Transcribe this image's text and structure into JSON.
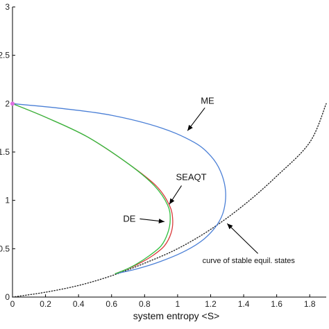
{
  "chart_data": {
    "type": "line",
    "title": "",
    "xlabel": "system entropy <S>",
    "ylabel": "",
    "xlim": [
      0,
      1.9
    ],
    "ylim": [
      0,
      3
    ],
    "x_ticks": [
      0,
      0.2,
      0.4,
      0.6,
      0.8,
      1,
      1.2,
      1.4,
      1.6,
      1.8
    ],
    "x_tick_labels": [
      "0",
      "0.2",
      "0.4",
      "0.6",
      "0.8",
      "1",
      "1.2",
      "1.4",
      "1.6",
      "1.8"
    ],
    "y_ticks": [
      0,
      0.5,
      1,
      1.5,
      2,
      2.5,
      3
    ],
    "y_tick_labels": [
      "0",
      "0.5",
      "1",
      "1.5",
      "2",
      "2.5",
      "3"
    ],
    "grid": false,
    "colors": {
      "me": "#4a7fd6",
      "seaqt": "#d93a3a",
      "de": "#2fbf3f",
      "equilibrium": "#222222",
      "start_marker": "#e070e0"
    },
    "series": [
      {
        "id": "me",
        "style": "solid",
        "x": [
          0.0,
          0.3,
          0.6,
          0.9,
          1.1,
          1.2,
          1.26,
          1.29,
          1.28,
          1.24,
          1.16,
          1.05,
          0.9,
          0.75,
          0.62
        ],
        "y": [
          2.0,
          1.95,
          1.88,
          1.75,
          1.6,
          1.46,
          1.3,
          1.1,
          0.9,
          0.75,
          0.6,
          0.48,
          0.37,
          0.29,
          0.24
        ]
      },
      {
        "id": "seaqt",
        "style": "solid",
        "x": [
          0.0,
          0.2,
          0.45,
          0.7,
          0.87,
          0.95,
          0.97,
          0.96,
          0.92,
          0.85,
          0.76,
          0.68,
          0.62
        ],
        "y": [
          2.0,
          1.86,
          1.66,
          1.38,
          1.15,
          0.95,
          0.8,
          0.66,
          0.53,
          0.43,
          0.34,
          0.28,
          0.24
        ]
      },
      {
        "id": "de",
        "style": "solid",
        "x": [
          0.0,
          0.2,
          0.45,
          0.7,
          0.86,
          0.94,
          0.955,
          0.94,
          0.9,
          0.83,
          0.75,
          0.68,
          0.62
        ],
        "y": [
          2.0,
          1.86,
          1.66,
          1.38,
          1.15,
          0.95,
          0.8,
          0.66,
          0.53,
          0.43,
          0.34,
          0.28,
          0.24
        ]
      },
      {
        "id": "equilibrium",
        "style": "dotted",
        "x": [
          0.0,
          0.2,
          0.4,
          0.6,
          0.8,
          1.0,
          1.2,
          1.4,
          1.6,
          1.8,
          1.9
        ],
        "y": [
          0.0,
          0.05,
          0.12,
          0.22,
          0.35,
          0.5,
          0.7,
          0.95,
          1.25,
          1.6,
          2.0
        ]
      }
    ],
    "start_point": {
      "x": 0,
      "y": 2
    },
    "annotations": [
      {
        "id": "me",
        "text": "ME",
        "text_at": [
          1.14,
          2.0
        ],
        "arrow_to": [
          1.06,
          1.72
        ]
      },
      {
        "id": "seaqt",
        "text": "SEAQT",
        "text_at": [
          0.99,
          1.21
        ],
        "arrow_to": [
          0.95,
          0.96
        ]
      },
      {
        "id": "de",
        "text": "DE",
        "text_at": [
          0.67,
          0.78
        ],
        "arrow_to": [
          0.92,
          0.78
        ]
      },
      {
        "id": "equilibrium",
        "text": "curve of stable equil. states",
        "text_at": [
          1.15,
          0.35
        ],
        "arrow_to": [
          1.3,
          0.76
        ]
      }
    ]
  }
}
